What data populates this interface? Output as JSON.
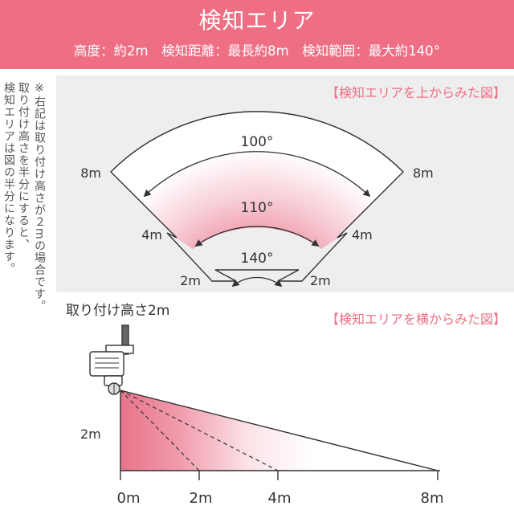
{
  "header": {
    "title": "検知エリア",
    "specs": "高度：約2m　検知距離：最長約8m　検知範囲：最大約140°",
    "background": "#ee6f84"
  },
  "note": {
    "lines": [
      "※右記は取り付け高さが２mの場合です。",
      "取り付け高さを半分にすると、検知エリアは図の半分になります。"
    ]
  },
  "top_view": {
    "caption": "【検知エリアを上からみた図】",
    "angles": {
      "outer": "100°",
      "middle": "110°",
      "inner": "140°"
    },
    "distance_labels": {
      "outer": "8m",
      "middle": "4m",
      "inner": "2m"
    }
  },
  "side_view": {
    "caption": "【検知エリアを横からみた図】",
    "install_height": "取り付け高さ2m",
    "height_label": "2m",
    "ticks": [
      "0m",
      "2m",
      "4m",
      "8m"
    ]
  },
  "colors": {
    "accent": "#ee6f84",
    "fill": "#e8748a",
    "panel": "#eeeeee"
  }
}
